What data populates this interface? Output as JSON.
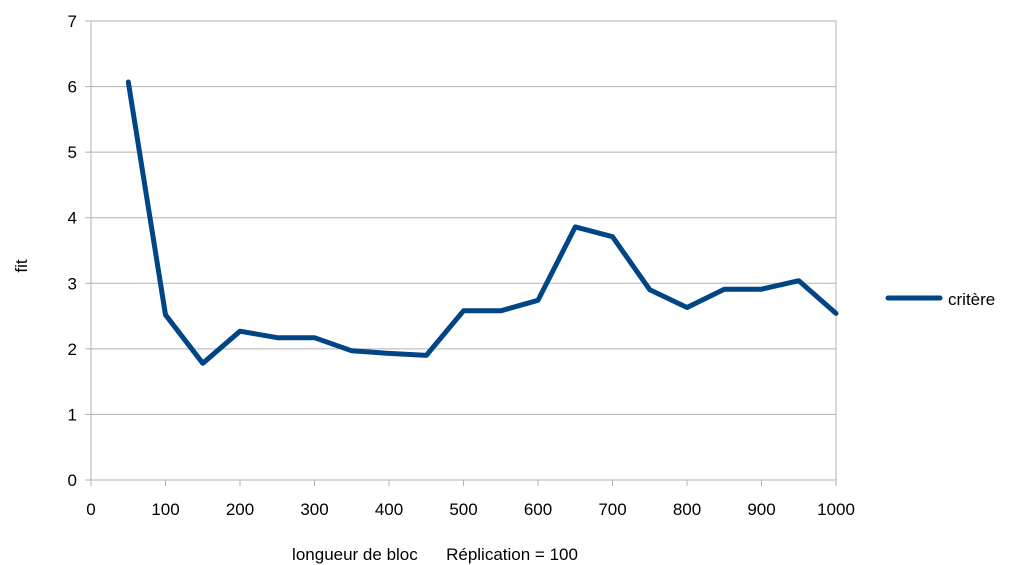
{
  "chart_data": {
    "type": "line",
    "title": "",
    "xlabel": "longueur de bloc      Réplication = 100",
    "ylabel": "fit",
    "xlim": [
      0,
      1000
    ],
    "ylim": [
      0,
      7
    ],
    "x_ticks": [
      0,
      100,
      200,
      300,
      400,
      500,
      600,
      700,
      800,
      900,
      1000
    ],
    "y_ticks": [
      0,
      1,
      2,
      3,
      4,
      5,
      6,
      7
    ],
    "grid": "horizontal",
    "legend_position": "right",
    "series": [
      {
        "name": "critère",
        "color": "#004586",
        "x": [
          50,
          100,
          150,
          200,
          250,
          300,
          350,
          400,
          450,
          500,
          550,
          600,
          650,
          700,
          750,
          800,
          850,
          900,
          950,
          1000
        ],
        "y": [
          6.07,
          2.52,
          1.78,
          2.27,
          2.17,
          2.17,
          1.97,
          1.93,
          1.9,
          2.58,
          2.58,
          2.74,
          3.86,
          3.71,
          2.9,
          2.63,
          2.91,
          2.91,
          3.04,
          2.54
        ]
      }
    ]
  }
}
